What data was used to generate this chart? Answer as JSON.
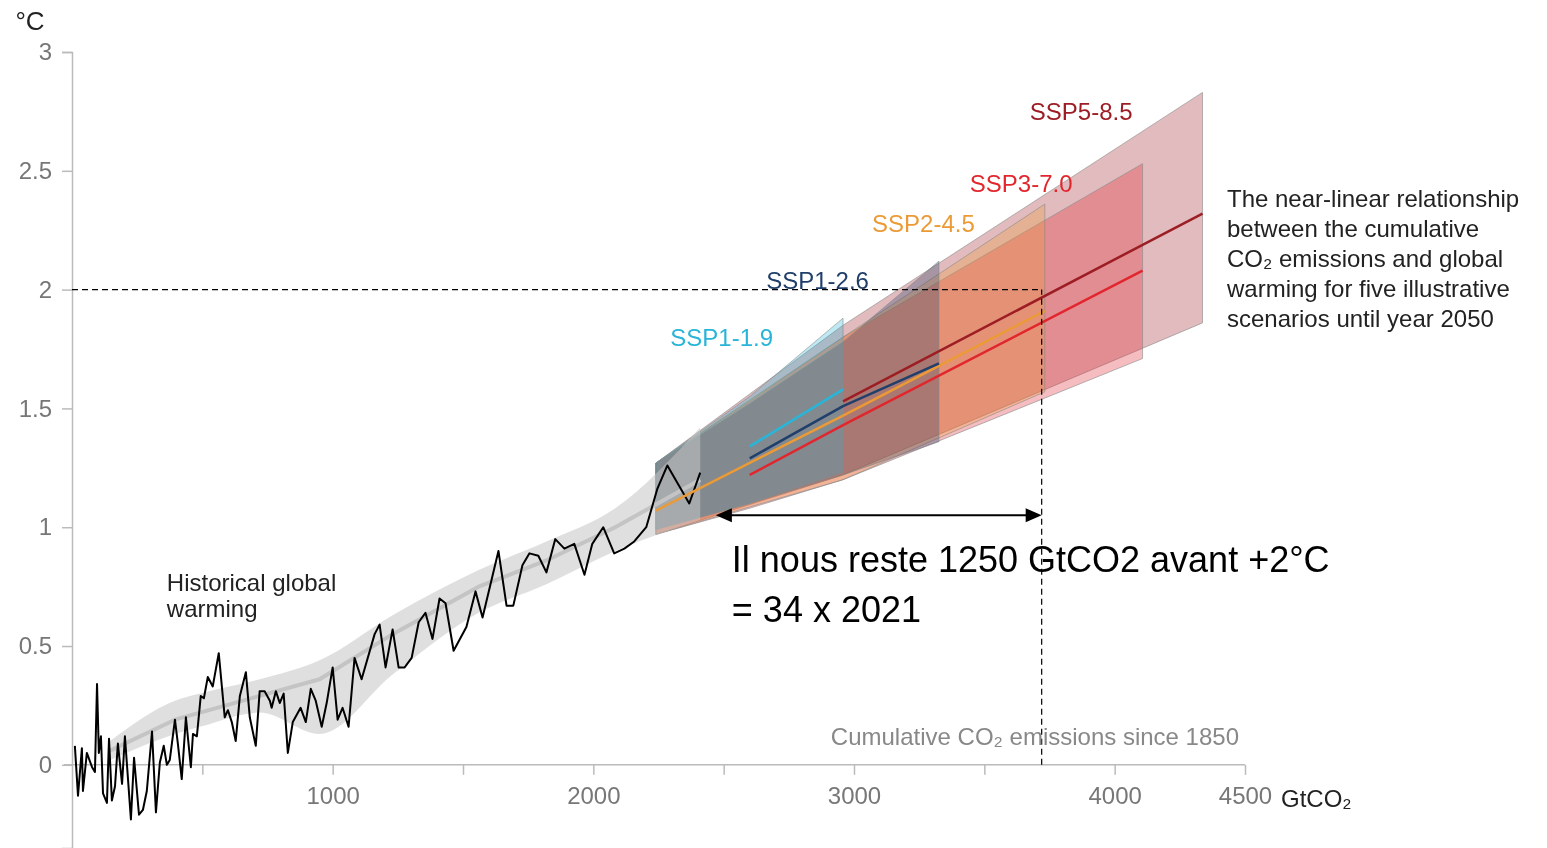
{
  "chart_data": {
    "type": "line",
    "xlabel": "GtCO₂",
    "ylabel": "°C",
    "xlim": [
      0,
      4500
    ],
    "ylim": [
      -0.35,
      3
    ],
    "xticks": [
      {
        "value": 500,
        "label": null
      },
      1000,
      {
        "value": 1500,
        "label": null
      },
      2000,
      {
        "value": 2500,
        "label": null
      },
      3000,
      {
        "value": 3500,
        "label": null
      },
      4000,
      4500
    ],
    "yticks": [
      0,
      0.5,
      1,
      1.5,
      2,
      2.5,
      3
    ],
    "grid": false,
    "legend": false,
    "marker": "none",
    "ref_lines": [
      {
        "axis": "y",
        "value": 2,
        "color": "#000000",
        "line_style": "dashed"
      },
      {
        "axis": "x",
        "value": 3720,
        "color": "#000000",
        "line_style": "dashed"
      }
    ],
    "annotations": [
      "Cumulative CO₂ emissions since 1850",
      {
        "text": "Il nous reste 1250 GtCO2 avant +2°C\n= 34 x 2021",
        "x": 2470,
        "y": 1.05
      },
      "The near-linear relationship between the cumulative CO₂ emissions and global warming for five illustrative scenarios until year 2050"
    ],
    "series": [
      {
        "color": "#c4c4c4",
        "x": [
          146,
          395,
          491,
          720,
          950,
          1230,
          1560,
          1820,
          2084,
          2410
        ],
        "values": [
          0.06,
          0.19,
          0.22,
          0.29,
          0.36,
          0.55,
          0.75,
          0.86,
          1.0,
          1.2
        ],
        "lower": [
          0.02,
          0.13,
          0.16,
          0.22,
          0.13,
          0.38,
          0.64,
          0.76,
          0.9,
          1.03
        ],
        "upper": [
          0.1,
          0.27,
          0.3,
          0.36,
          0.44,
          0.63,
          0.82,
          0.94,
          1.08,
          1.42
        ]
      },
      {
        "name": "Historical global warming",
        "color": "#000000",
        "x": [
          11,
          23,
          38,
          42,
          57,
          77,
          88,
          96,
          103,
          111,
          119,
          134,
          142,
          153,
          165,
          176,
          192,
          203,
          226,
          238,
          257,
          272,
          287,
          307,
          322,
          337,
          352,
          364,
          375,
          395,
          406,
          421,
          437,
          456,
          464,
          479,
          494,
          506,
          521,
          540,
          563,
          586,
          598,
          613,
          628,
          644,
          667,
          682,
          705,
          720,
          739,
          759,
          766,
          782,
          797,
          812,
          828,
          847,
          877,
          897,
          916,
          935,
          958,
          977,
          1000,
          1019,
          1038,
          1061,
          1084,
          1111,
          1161,
          1180,
          1203,
          1230,
          1253,
          1276,
          1303,
          1330,
          1356,
          1383,
          1410,
          1433,
          1464,
          1513,
          1548,
          1575,
          1636,
          1667,
          1693,
          1728,
          1755,
          1789,
          1820,
          1854,
          1889,
          1927,
          1966,
          1996,
          2038,
          2080,
          2119,
          2157,
          2203,
          2245,
          2284,
          2326,
          2368,
          2410
        ],
        "values": [
          0.08,
          -0.13,
          0.07,
          -0.11,
          0.05,
          -0.01,
          -0.03,
          0.34,
          0.05,
          0.12,
          -0.12,
          -0.16,
          0.11,
          -0.15,
          -0.09,
          0.09,
          -0.08,
          0.12,
          -0.23,
          0.03,
          -0.21,
          -0.19,
          -0.11,
          0.14,
          -0.2,
          0.01,
          0.08,
          0,
          0.02,
          0.19,
          0.09,
          -0.06,
          0.2,
          -0.01,
          0.13,
          0.12,
          0.29,
          0.28,
          0.37,
          0.33,
          0.47,
          0.2,
          0.23,
          0.18,
          0.1,
          0.29,
          0.39,
          0.2,
          0.08,
          0.31,
          0.31,
          0.27,
          0.24,
          0.31,
          0.26,
          0.3,
          0.05,
          0.18,
          0.24,
          0.18,
          0.32,
          0.27,
          0.16,
          0.26,
          0.41,
          0.19,
          0.24,
          0.16,
          0.45,
          0.36,
          0.55,
          0.59,
          0.41,
          0.57,
          0.41,
          0.41,
          0.45,
          0.6,
          0.64,
          0.53,
          0.7,
          0.68,
          0.48,
          0.58,
          0.73,
          0.62,
          0.9,
          0.67,
          0.67,
          0.84,
          0.89,
          0.88,
          0.81,
          0.95,
          0.91,
          0.93,
          0.8,
          0.93,
          1.0,
          0.89,
          0.91,
          0.94,
          1.0,
          1.16,
          1.26,
          1.18,
          1.1,
          1.23
        ]
      },
      {
        "name": "SSP1-1.9",
        "color": "#29b5d8",
        "x": [
          2240,
          2600,
          2958
        ],
        "values": [
          null,
          1.34,
          1.58
        ],
        "lower": [
          0.99,
          1.1,
          1.23
        ],
        "upper": [
          1.27,
          1.55,
          1.88
        ]
      },
      {
        "name": "SSP1-2.6",
        "color": "#213f6b",
        "x": [
          2240,
          2600,
          2958,
          3326
        ],
        "values": [
          null,
          1.29,
          1.51,
          1.69
        ],
        "lower": [
          0.99,
          1.1,
          1.22,
          1.36
        ],
        "upper": [
          1.27,
          1.52,
          1.78,
          2.12
        ]
      },
      {
        "name": "SSP2-4.5",
        "color": "#ec9a35",
        "x": [
          2240,
          2958,
          3732
        ],
        "values": [
          1.07,
          1.47,
          1.91
        ],
        "lower": [
          0.97,
          1.2,
          1.57
        ],
        "upper": [
          1.27,
          1.8,
          2.36
        ]
      },
      {
        "name": "SSP3-7.0",
        "color": "#e2262d",
        "x": [
          2240,
          2600,
          2958,
          4107
        ],
        "values": [
          null,
          1.22,
          1.43,
          2.08
        ],
        "lower": [
          0.97,
          1.08,
          1.2,
          1.71
        ],
        "upper": [
          1.27,
          1.53,
          1.8,
          2.53
        ]
      },
      {
        "name": "SSP5-8.5",
        "color": "#9c1d23",
        "x": [
          2240,
          2958,
          4337
        ],
        "values": [
          null,
          1.53,
          2.32
        ],
        "lower": [
          0.97,
          1.22,
          1.86
        ],
        "upper": [
          1.27,
          1.85,
          2.83
        ]
      }
    ]
  }
}
